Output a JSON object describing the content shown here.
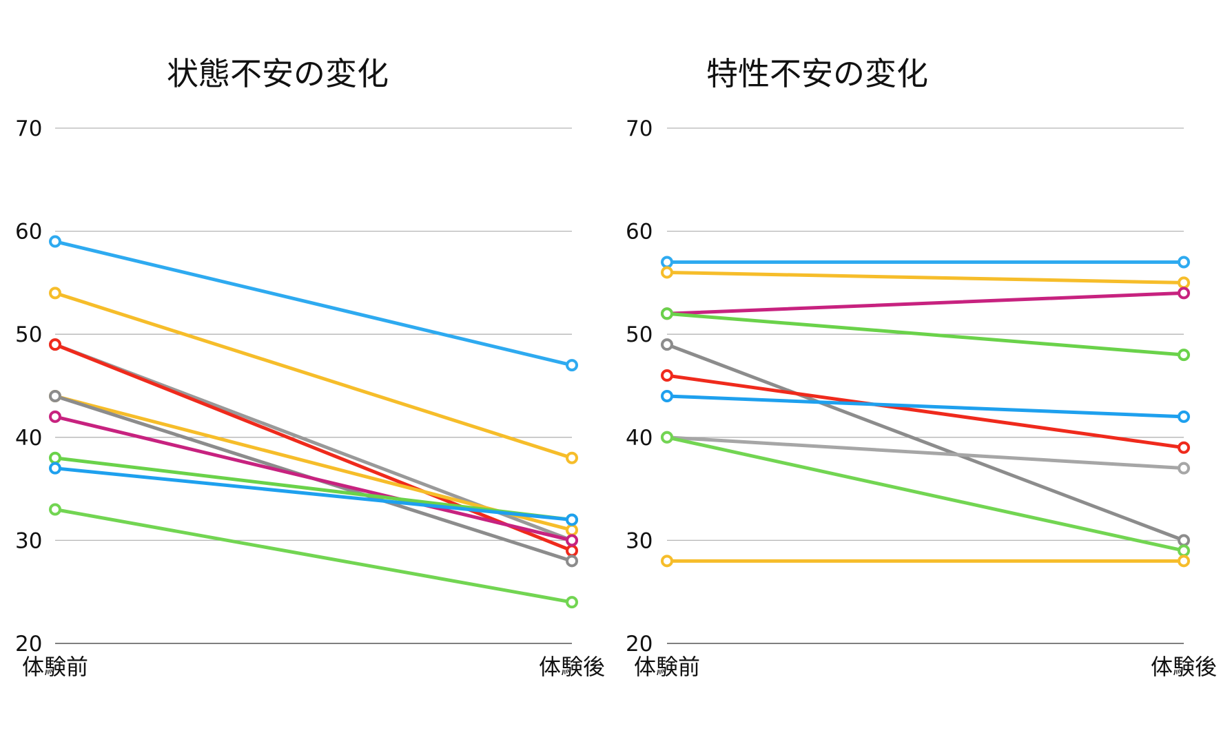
{
  "chart_data": [
    {
      "type": "line",
      "title": "状態不安の変化",
      "categories": [
        "体験前",
        "体験後"
      ],
      "ylim": [
        20,
        70
      ],
      "yticks": [
        20,
        30,
        40,
        50,
        60,
        70
      ],
      "grid": true,
      "series": [
        {
          "color": "#2eaaf0",
          "values": [
            59,
            47
          ]
        },
        {
          "color": "#f6bd2a",
          "values": [
            54,
            38
          ]
        },
        {
          "color": "#999999",
          "values": [
            49,
            30
          ]
        },
        {
          "color": "#ef2a1c",
          "values": [
            49,
            29
          ]
        },
        {
          "color": "#f6bd2a",
          "values": [
            44,
            31
          ]
        },
        {
          "color": "#8c8c8c",
          "values": [
            44,
            28
          ]
        },
        {
          "color": "#c7227f",
          "values": [
            42,
            30
          ]
        },
        {
          "color": "#6ad24a",
          "values": [
            38,
            32
          ]
        },
        {
          "color": "#1ea0ee",
          "values": [
            37,
            32
          ]
        },
        {
          "color": "#72d552",
          "values": [
            33,
            24
          ]
        }
      ]
    },
    {
      "type": "line",
      "title": "特性不安の変化",
      "categories": [
        "体験前",
        "体験後"
      ],
      "ylim": [
        20,
        70
      ],
      "yticks": [
        20,
        30,
        40,
        50,
        60,
        70
      ],
      "grid": true,
      "series": [
        {
          "color": "#2eaaf0",
          "values": [
            57,
            57
          ]
        },
        {
          "color": "#f6bd2a",
          "values": [
            56,
            55
          ]
        },
        {
          "color": "#c7227f",
          "values": [
            52,
            54
          ]
        },
        {
          "color": "#6ad24a",
          "values": [
            52,
            48
          ]
        },
        {
          "color": "#8c8c8c",
          "values": [
            49,
            30
          ]
        },
        {
          "color": "#ef2a1c",
          "values": [
            46,
            39
          ]
        },
        {
          "color": "#1ea0ee",
          "values": [
            44,
            42
          ]
        },
        {
          "color": "#a6a6a6",
          "values": [
            40,
            37
          ]
        },
        {
          "color": "#72d552",
          "values": [
            40,
            29
          ]
        },
        {
          "color": "#f6bd2a",
          "values": [
            28,
            28
          ]
        }
      ]
    }
  ]
}
